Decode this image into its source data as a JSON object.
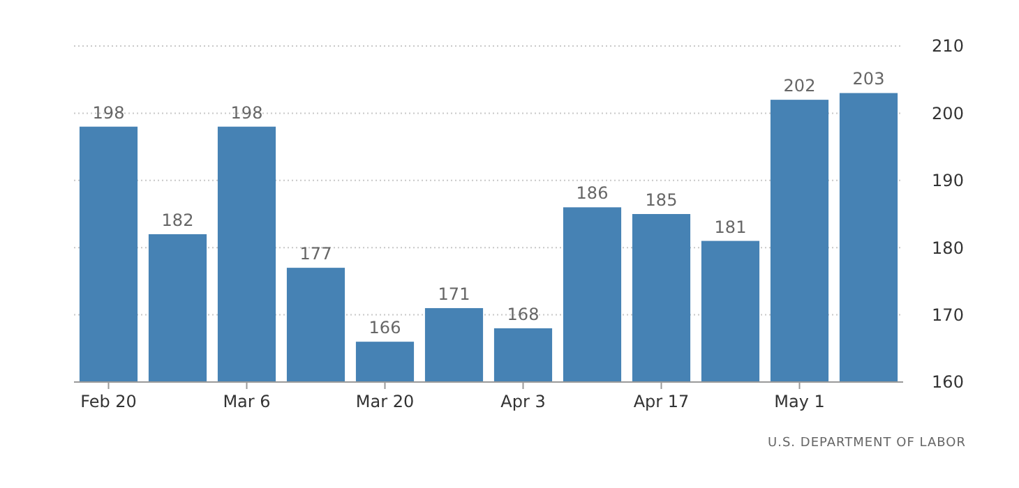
{
  "chart_data": {
    "type": "bar",
    "categories": [
      "Feb 20",
      null,
      "Mar 6",
      null,
      "Mar 20",
      null,
      "Apr 3",
      null,
      "Apr 17",
      null,
      "May 1",
      null
    ],
    "values": [
      198,
      182,
      198,
      177,
      166,
      171,
      168,
      186,
      185,
      181,
      202,
      203
    ],
    "color": "#4682b4",
    "ylim": [
      160,
      210
    ],
    "yticks": [
      160,
      170,
      180,
      190,
      200,
      210
    ],
    "grid": "y",
    "data_labels": true,
    "annotations": [
      "U.S. DEPARTMENT OF LABOR"
    ]
  }
}
